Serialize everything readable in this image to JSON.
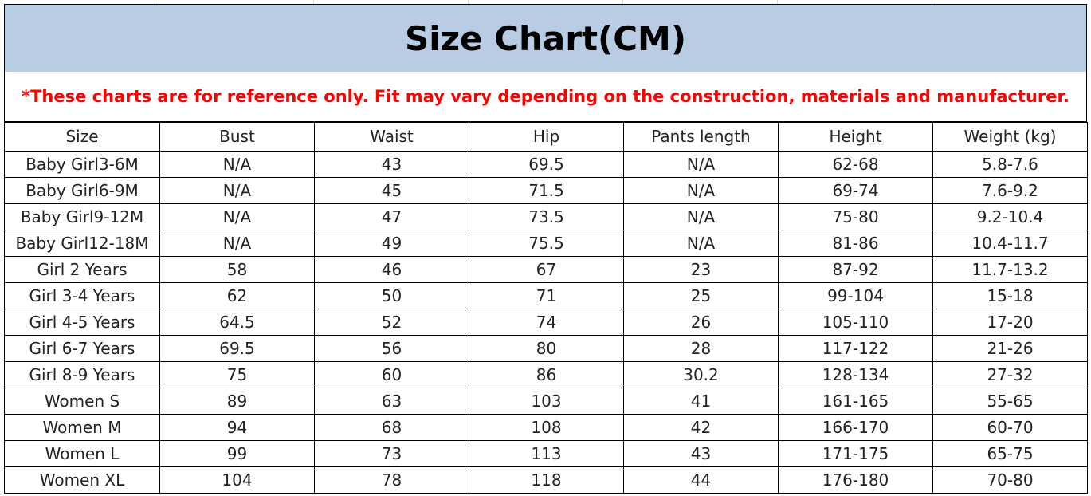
{
  "title": "Size Chart(CM)",
  "notice": "*These charts are for reference only. Fit may vary depending on the construction, materials and manufacturer.",
  "colors": {
    "title_background": "#b8cce4",
    "notice_text": "#ff0000",
    "border": "#000000"
  },
  "table": {
    "headers": [
      "Size",
      "Bust",
      "Waist",
      "Hip",
      "Pants length",
      "Height",
      "Weight (kg)"
    ],
    "rows": [
      [
        "Baby Girl3-6M",
        "N/A",
        "43",
        "69.5",
        "N/A",
        "62-68",
        "5.8-7.6"
      ],
      [
        "Baby Girl6-9M",
        "N/A",
        "45",
        "71.5",
        "N/A",
        "69-74",
        "7.6-9.2"
      ],
      [
        "Baby Girl9-12M",
        "N/A",
        "47",
        "73.5",
        "N/A",
        "75-80",
        "9.2-10.4"
      ],
      [
        "Baby Girl12-18M",
        "N/A",
        "49",
        "75.5",
        "N/A",
        "81-86",
        "10.4-11.7"
      ],
      [
        "Girl 2 Years",
        "58",
        "46",
        "67",
        "23",
        "87-92",
        "11.7-13.2"
      ],
      [
        "Girl 3-4 Years",
        "62",
        "50",
        "71",
        "25",
        "99-104",
        "15-18"
      ],
      [
        "Girl 4-5 Years",
        "64.5",
        "52",
        "74",
        "26",
        "105-110",
        "17-20"
      ],
      [
        "Girl 6-7 Years",
        "69.5",
        "56",
        "80",
        "28",
        "117-122",
        "21-26"
      ],
      [
        "Girl 8-9 Years",
        "75",
        "60",
        "86",
        "30.2",
        "128-134",
        "27-32"
      ],
      [
        "Women S",
        "89",
        "63",
        "103",
        "41",
        "161-165",
        "55-65"
      ],
      [
        "Women M",
        "94",
        "68",
        "108",
        "42",
        "166-170",
        "60-70"
      ],
      [
        "Women L",
        "99",
        "73",
        "113",
        "43",
        "171-175",
        "65-75"
      ],
      [
        "Women XL",
        "104",
        "78",
        "118",
        "44",
        "176-180",
        "70-80"
      ]
    ]
  }
}
